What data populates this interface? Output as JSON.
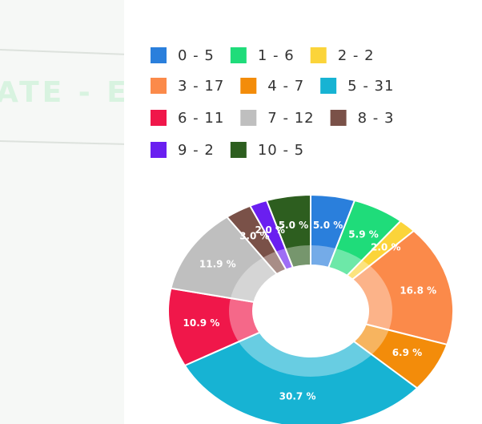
{
  "watermark": "ATE - E",
  "chart_data": {
    "type": "pie",
    "categories": [
      "0 - 5",
      "1 - 6",
      "2 - 2",
      "3 - 17",
      "4 - 7",
      "5 - 31",
      "6 - 11",
      "7 - 12",
      "8 - 3",
      "9 - 2",
      "10 - 5"
    ],
    "values": [
      5.0,
      5.9,
      2.0,
      16.8,
      6.9,
      30.7,
      10.9,
      11.9,
      3.0,
      2.0,
      5.0
    ],
    "value_labels": [
      "5.0 %",
      "5.9 %",
      "2.0 %",
      "16.8 %",
      "6.9 %",
      "30.7 %",
      "10.9 %",
      "11.9 %",
      "3.0 %",
      "2.0 %",
      "5.0 %"
    ],
    "colors": [
      "#2a7fdc",
      "#1fdc7a",
      "#fbd43a",
      "#fb8a4a",
      "#f38c0a",
      "#17b3d3",
      "#f0174a",
      "#bfbfbf",
      "#7a5148",
      "#6a1ff0",
      "#2d5e1f"
    ],
    "donut": true,
    "legend": "top"
  }
}
